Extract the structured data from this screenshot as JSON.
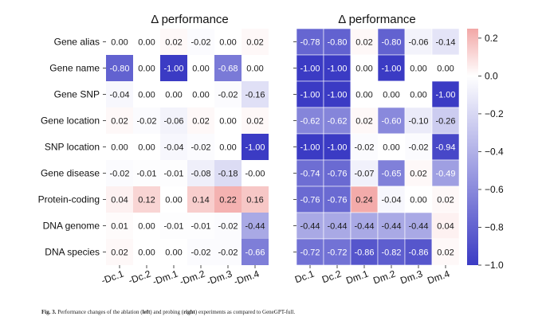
{
  "chart_data": [
    {
      "type": "heatmap",
      "title": "Δ performance",
      "rows": [
        "Gene alias",
        "Gene name",
        "Gene SNP",
        "Gene location",
        "SNP location",
        "Gene disease",
        "Protein-coding",
        "DNA genome",
        "DNA species"
      ],
      "columns": [
        "-Dc.1",
        "-Dc.2",
        "-Dm.1",
        "-Dm.2",
        "-Dm.3",
        "-Dm.4"
      ],
      "values": [
        [
          "0.00",
          "0.00",
          "0.02",
          "-0.02",
          "0.00",
          "0.02"
        ],
        [
          "-0.80",
          "0.00",
          "-1.00",
          "0.00",
          "-0.68",
          "0.00"
        ],
        [
          "-0.04",
          "0.00",
          "0.00",
          "0.00",
          "-0.02",
          "-0.16"
        ],
        [
          "0.02",
          "-0.02",
          "-0.06",
          "0.02",
          "0.00",
          "0.02"
        ],
        [
          "0.00",
          "0.00",
          "-0.04",
          "-0.02",
          "0.00",
          "-1.00"
        ],
        [
          "-0.02",
          "-0.01",
          "-0.01",
          "-0.08",
          "-0.18",
          "-0.00"
        ],
        [
          "0.04",
          "0.12",
          "0.00",
          "0.14",
          "0.22",
          "0.16"
        ],
        [
          "0.01",
          "0.00",
          "-0.01",
          "-0.01",
          "-0.02",
          "-0.44"
        ],
        [
          "0.02",
          "0.00",
          "0.00",
          "-0.02",
          "-0.02",
          "-0.66"
        ]
      ]
    },
    {
      "type": "heatmap",
      "title": "Δ performance",
      "rows": [
        "Gene alias",
        "Gene name",
        "Gene SNP",
        "Gene location",
        "SNP location",
        "Gene disease",
        "Protein-coding",
        "DNA genome",
        "DNA species"
      ],
      "columns": [
        "Dc.1",
        "Dc.2",
        "Dm.1",
        "Dm.2",
        "Dm.3",
        "Dm.4"
      ],
      "values": [
        [
          "-0.78",
          "-0.80",
          "0.02",
          "-0.80",
          "-0.06",
          "-0.14"
        ],
        [
          "-1.00",
          "-1.00",
          "0.00",
          "-1.00",
          "0.00",
          "0.00"
        ],
        [
          "-1.00",
          "-1.00",
          "0.00",
          "0.00",
          "0.00",
          "-1.00"
        ],
        [
          "-0.62",
          "-0.62",
          "0.02",
          "-0.60",
          "-0.10",
          "-0.26"
        ],
        [
          "-1.00",
          "-1.00",
          "-0.02",
          "0.00",
          "-0.02",
          "-0.94"
        ],
        [
          "-0.74",
          "-0.76",
          "-0.07",
          "-0.65",
          "0.02",
          "-0.49"
        ],
        [
          "-0.76",
          "-0.76",
          "0.24",
          "-0.04",
          "0.00",
          "0.02"
        ],
        [
          "-0.44",
          "-0.44",
          "-0.44",
          "-0.44",
          "-0.44",
          "0.04"
        ],
        [
          "-0.72",
          "-0.72",
          "-0.86",
          "-0.82",
          "-0.86",
          "0.02"
        ]
      ]
    }
  ],
  "colorbar": {
    "vmin": -1.0,
    "vmax": 0.25,
    "ticks": [
      "0.2",
      "0.0",
      "−0.2",
      "−0.4",
      "−0.6",
      "−0.8",
      "−1.0"
    ],
    "colors": {
      "negative": "#3b3bc4",
      "neutral": "#ffffff",
      "positive": "#f2a7a6"
    }
  },
  "caption": {
    "label": "Fig. 3.",
    "text_before_left": " Performance changes of the ablation (",
    "left": "left",
    "text_between": ") and probing (",
    "right": "right",
    "text_after": ") experiments as compared to GeneGPT-full."
  }
}
